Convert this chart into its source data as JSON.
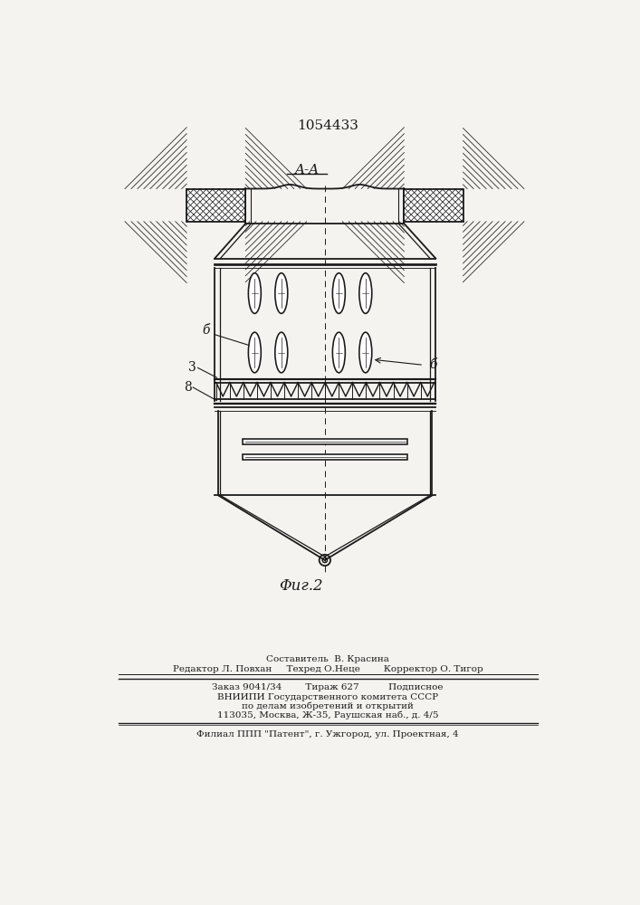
{
  "patent_number": "1054433",
  "fig_label": "Φиг.2",
  "section_label": "A-A",
  "label_3": "3",
  "label_6a": "б",
  "label_6b": "б",
  "label_8": "8",
  "footer_lines": [
    "Составитель  В. Красина",
    "Редактор Л. Повхан     Техред О.Неце        Корректор О. Тигор",
    "Заказ 9041/34        Тираж 627          Подписное",
    "ВНИИПИ Государственного комитета СССР",
    "по делам изобретений и открытий",
    "113035, Москва, Ж-35, Раушская наб., д. 4/5",
    "Филиал ППП \"Патент\", г. Ужгород, ул. Проектная, 4"
  ],
  "bg_color": "#f5f3f0",
  "line_color": "#1a1a1a"
}
